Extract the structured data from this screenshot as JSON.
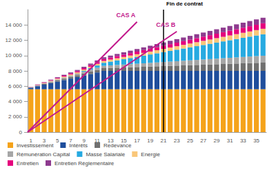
{
  "chart_data": {
    "type": "bar",
    "stacked": true,
    "grid": false,
    "legend": "bottom",
    "categories": [
      "1",
      null,
      "3",
      null,
      "5",
      null,
      "7",
      null,
      "9",
      null,
      "11",
      null,
      "13",
      null,
      "15",
      null,
      "17",
      null,
      "19",
      null,
      "21",
      null,
      "23",
      null,
      "25",
      null,
      "27",
      null,
      "29",
      null,
      "31",
      null,
      "33",
      null,
      "35",
      null
    ],
    "ylim": [
      0,
      16000
    ],
    "yticks": [
      0,
      {
        "value": 2000,
        "label": "2 000"
      },
      {
        "value": 4000,
        "label": "4 000"
      },
      {
        "value": 6000,
        "label": "6 000"
      },
      {
        "value": 8000,
        "label": "8 000"
      },
      {
        "value": 10000,
        "label": "10 000"
      },
      {
        "value": 12000,
        "label": "12 000"
      },
      {
        "value": 14000,
        "label": "14 000"
      }
    ],
    "series": [
      {
        "name": "Investissement",
        "color": "#f5a31a",
        "values": [
          5600,
          5600,
          5600,
          5600,
          5600,
          5600,
          5600,
          5600,
          5600,
          5600,
          5600,
          5600,
          5600,
          5600,
          5600,
          5600,
          5600,
          5600,
          5600,
          5600,
          5600,
          5600,
          5600,
          5600,
          5600,
          5600,
          5600,
          5600,
          5600,
          5600,
          5600,
          5600,
          5600,
          5600,
          5600,
          5600
        ]
      },
      {
        "name": "Intérêts",
        "color": "#1f4e9c",
        "values": [
          200,
          400,
          600,
          800,
          1000,
          1200,
          1400,
          1600,
          1800,
          2000,
          2200,
          2400,
          2400,
          2400,
          2400,
          2400,
          2400,
          2400,
          2400,
          2400,
          2400,
          2400,
          2400,
          2400,
          2400,
          2400,
          2400,
          2400,
          2400,
          2400,
          2400,
          2400,
          2400,
          2400,
          2400,
          2400
        ]
      },
      {
        "name": "Redevance",
        "color": "#707070",
        "values": [
          30,
          60,
          90,
          120,
          150,
          180,
          210,
          240,
          270,
          300,
          330,
          360,
          390,
          420,
          450,
          480,
          510,
          540,
          570,
          600,
          630,
          660,
          690,
          720,
          750,
          780,
          810,
          840,
          870,
          900,
          930,
          960,
          990,
          1020,
          1050,
          1080
        ]
      },
      {
        "name": "Rémunération Capital",
        "color": "#a6a6a6",
        "values": [
          25,
          50,
          75,
          100,
          125,
          150,
          175,
          200,
          225,
          250,
          275,
          300,
          325,
          350,
          375,
          400,
          425,
          450,
          475,
          500,
          525,
          550,
          575,
          600,
          625,
          650,
          675,
          700,
          725,
          750,
          775,
          800,
          825,
          850,
          875,
          900
        ]
      },
      {
        "name": "Masse Salariale",
        "color": "#27aae1",
        "values": [
          0,
          0,
          0,
          0,
          0,
          0,
          0,
          0,
          100,
          200,
          300,
          400,
          500,
          600,
          700,
          800,
          900,
          1000,
          1100,
          1200,
          1300,
          1400,
          1500,
          1600,
          1700,
          1800,
          1900,
          2000,
          2100,
          2200,
          2300,
          2400,
          2500,
          2600,
          2700,
          2800
        ]
      },
      {
        "name": "Energie",
        "color": "#f9c77a",
        "values": [
          20,
          40,
          60,
          80,
          100,
          120,
          140,
          160,
          180,
          200,
          220,
          240,
          260,
          280,
          300,
          320,
          340,
          360,
          380,
          400,
          420,
          440,
          460,
          480,
          500,
          520,
          540,
          560,
          580,
          600,
          620,
          640,
          660,
          680,
          700,
          720
        ]
      },
      {
        "name": "Entretien",
        "color": "#e5007d",
        "values": [
          20,
          40,
          60,
          80,
          100,
          120,
          140,
          160,
          180,
          200,
          220,
          240,
          260,
          280,
          300,
          320,
          340,
          360,
          380,
          400,
          420,
          440,
          460,
          480,
          500,
          520,
          540,
          560,
          580,
          600,
          620,
          640,
          660,
          680,
          700,
          720
        ]
      },
      {
        "name": "Entretien Réglementaire",
        "color": "#8e3b8f",
        "values": [
          20,
          40,
          60,
          80,
          100,
          120,
          140,
          160,
          180,
          200,
          220,
          240,
          260,
          280,
          300,
          320,
          340,
          360,
          380,
          400,
          420,
          440,
          460,
          480,
          500,
          520,
          540,
          560,
          580,
          600,
          620,
          640,
          660,
          680,
          700,
          720
        ]
      }
    ],
    "annotations": [
      {
        "text": "CAS A",
        "color": "#c2188b",
        "x": [
          0.5,
          17
        ],
        "y": [
          0,
          14400
        ]
      },
      {
        "text": "CAS B",
        "color": "#c2188b",
        "x": [
          0.5,
          23
        ],
        "y": [
          0,
          13150
        ]
      },
      {
        "text": "Fin de contrat",
        "color": "#000000",
        "x": 21
      }
    ]
  }
}
